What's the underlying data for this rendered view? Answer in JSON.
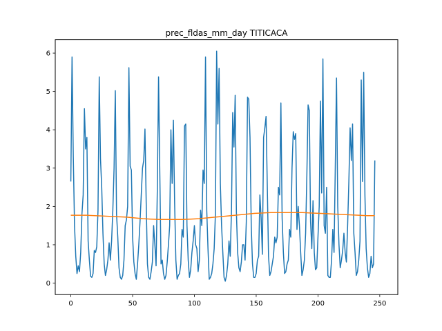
{
  "chart_data": {
    "type": "line",
    "title": "prec_fldas_mm_day TITICACA",
    "xlabel": "",
    "ylabel": "",
    "xlim": [
      -12.6,
      264.6
    ],
    "ylim": [
      -0.3,
      6.35
    ],
    "x_ticks": [
      0,
      50,
      100,
      150,
      200,
      250
    ],
    "x_tick_labels": [
      "0",
      "50",
      "100",
      "150",
      "200",
      "250"
    ],
    "y_ticks": [
      0,
      1,
      2,
      3,
      4,
      5,
      6
    ],
    "y_tick_labels": [
      "0",
      "1",
      "2",
      "3",
      "4",
      "5",
      "6"
    ],
    "grid": false,
    "legend": "none",
    "x_start": 0,
    "series": [
      {
        "color": "#1f77b4",
        "values": [
          2.65,
          5.9,
          3.3,
          1.5,
          0.7,
          0.25,
          0.45,
          0.3,
          0.8,
          1.8,
          2.3,
          4.55,
          3.5,
          3.8,
          1.1,
          0.6,
          0.18,
          0.15,
          0.25,
          0.85,
          0.8,
          0.95,
          1.9,
          5.38,
          3.25,
          2.5,
          1.3,
          0.5,
          0.2,
          0.35,
          0.6,
          1.05,
          0.6,
          1.1,
          1.9,
          3.0,
          5.02,
          1.8,
          1.2,
          0.4,
          0.15,
          0.1,
          0.2,
          0.6,
          1.5,
          1.65,
          2.0,
          5.62,
          3.05,
          2.95,
          1.2,
          0.55,
          0.25,
          0.1,
          0.5,
          1.0,
          1.6,
          2.3,
          3.0,
          3.2,
          4.02,
          2.1,
          0.5,
          0.15,
          0.1,
          0.3,
          0.55,
          1.5,
          1.0,
          0.45,
          2.45,
          5.38,
          2.9,
          0.5,
          0.6,
          0.25,
          0.1,
          0.2,
          0.55,
          1.0,
          1.5,
          4.0,
          2.6,
          4.25,
          2.1,
          0.6,
          0.1,
          0.2,
          0.25,
          0.5,
          1.4,
          1.2,
          4.1,
          4.15,
          1.5,
          0.6,
          0.15,
          0.35,
          0.8,
          1.1,
          1.5,
          1.0,
          0.9,
          0.3,
          0.6,
          1.9,
          1.5,
          2.95,
          2.6,
          5.9,
          1.9,
          0.9,
          0.1,
          0.15,
          0.25,
          0.5,
          0.9,
          1.8,
          6.05,
          4.15,
          5.6,
          2.6,
          1.5,
          0.8,
          0.15,
          0.05,
          0.2,
          0.5,
          1.1,
          0.7,
          1.9,
          4.45,
          3.55,
          4.9,
          1.85,
          0.8,
          0.4,
          0.3,
          0.55,
          1.0,
          1.0,
          0.6,
          1.6,
          4.85,
          4.8,
          3.8,
          1.5,
          0.5,
          0.15,
          0.15,
          0.25,
          0.6,
          0.7,
          2.3,
          1.7,
          0.75,
          3.8,
          4.05,
          4.35,
          2.5,
          0.7,
          0.2,
          0.3,
          0.5,
          0.7,
          1.2,
          1.05,
          1.2,
          2.5,
          2.3,
          4.7,
          1.7,
          0.8,
          0.25,
          0.3,
          0.5,
          0.6,
          1.4,
          1.2,
          3.0,
          3.95,
          3.75,
          3.9,
          1.4,
          2.0,
          1.5,
          0.8,
          0.2,
          0.35,
          0.6,
          1.3,
          2.8,
          4.65,
          4.5,
          1.6,
          0.9,
          2.15,
          0.8,
          0.35,
          0.4,
          1.2,
          2.0,
          4.75,
          2.35,
          5.85,
          1.5,
          1.3,
          2.5,
          0.2,
          0.15,
          0.15,
          0.6,
          1.4,
          0.8,
          3.0,
          5.35,
          2.0,
          1.0,
          0.4,
          0.6,
          0.85,
          1.3,
          0.8,
          0.55,
          1.5,
          2.65,
          4.05,
          3.2,
          4.15,
          1.3,
          0.8,
          0.2,
          0.3,
          0.6,
          1.1,
          5.3,
          2.65,
          5.5,
          2.3,
          0.9,
          0.4,
          0.15,
          0.25,
          0.7,
          0.4,
          0.5,
          3.2
        ]
      },
      {
        "color": "#ff7f0e",
        "values": [
          1.77,
          1.77,
          1.77,
          1.76,
          1.75,
          1.74,
          1.73,
          1.72,
          1.7,
          1.68,
          1.67,
          1.66,
          1.66,
          1.66,
          1.66,
          1.67,
          1.68,
          1.7,
          1.72,
          1.74,
          1.76,
          1.78,
          1.8,
          1.82,
          1.83,
          1.84,
          1.84,
          1.84,
          1.84,
          1.84,
          1.83,
          1.82,
          1.81,
          1.8,
          1.79,
          1.78,
          1.77,
          1.76,
          1.76
        ]
      }
    ]
  }
}
